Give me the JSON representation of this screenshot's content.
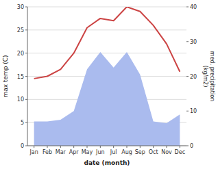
{
  "chart_data": {
    "type": "line",
    "categories": [
      "Jan",
      "Feb",
      "Mar",
      "Apr",
      "May",
      "Jun",
      "Jul",
      "Aug",
      "Sep",
      "Oct",
      "Nov",
      "Dec"
    ],
    "series": [
      {
        "type": "line",
        "color": "#cc4444",
        "axis": "y",
        "values": [
          14.5,
          15.0,
          16.5,
          20.0,
          25.5,
          27.5,
          27.0,
          30.0,
          29.0,
          26.0,
          22.0,
          16.0
        ]
      },
      {
        "type": "area",
        "color": "#aabbee",
        "axis": "y2",
        "values": [
          7.0,
          7.0,
          7.5,
          10.0,
          22.0,
          27.0,
          22.5,
          27.0,
          20.5,
          7.0,
          6.5,
          9.0
        ]
      }
    ],
    "ylim": [
      0,
      30
    ],
    "yticks": [
      0,
      5,
      10,
      15,
      20,
      25,
      30
    ],
    "y2lim": [
      0,
      40
    ],
    "y2ticks": [
      0,
      10,
      20,
      30,
      40
    ],
    "y_label": "max temp (C)",
    "y2_label": "med. precipitation\n(kg/m2)",
    "x_label": "date (month)",
    "grid": true
  }
}
